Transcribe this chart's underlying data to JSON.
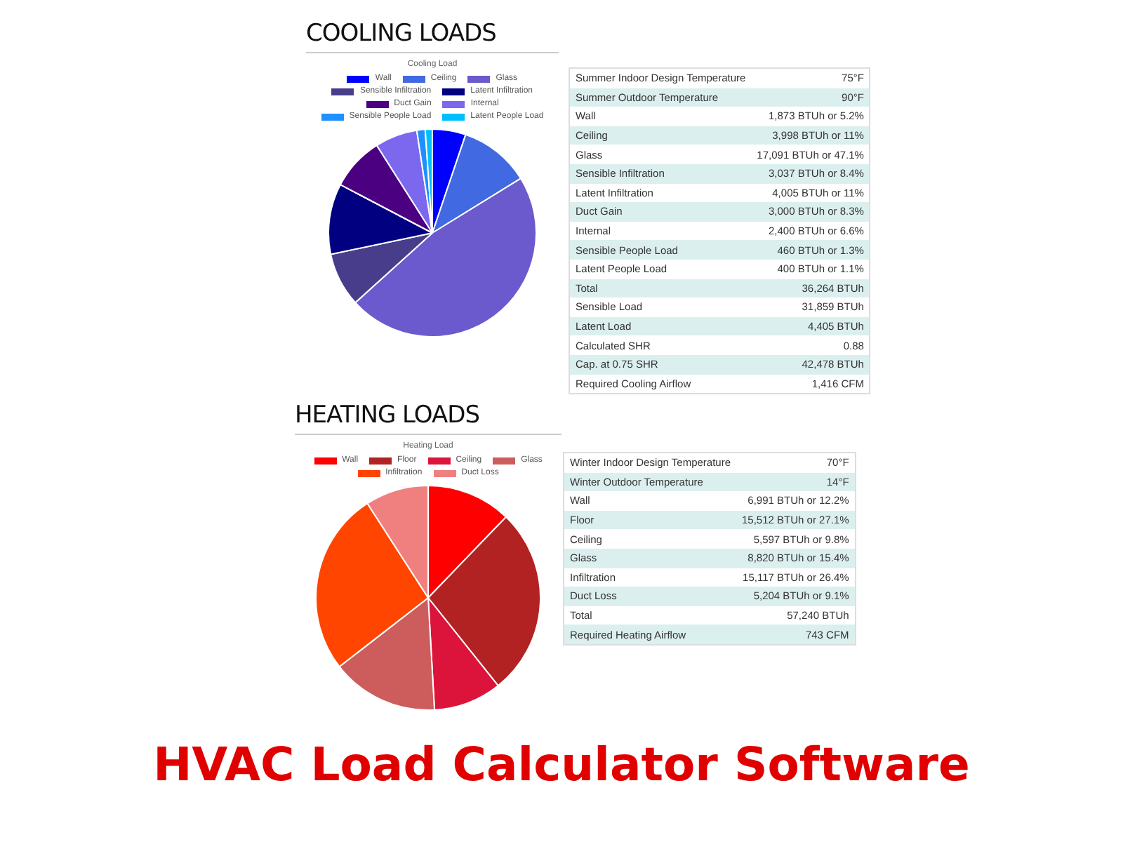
{
  "chart_data": [
    {
      "type": "pie",
      "title": "COOLING LOADS",
      "subtitle": "Cooling Load",
      "legend": "top",
      "categories": [
        "Wall",
        "Ceiling",
        "Glass",
        "Sensible Infiltration",
        "Latent Infiltration",
        "Duct Gain",
        "Internal",
        "Sensible People Load",
        "Latent People Load"
      ],
      "values": [
        5.2,
        11,
        47.1,
        8.4,
        11,
        8.3,
        6.6,
        1.3,
        1.1
      ],
      "colors": [
        "#0000ff",
        "#4169e1",
        "#6a5acd",
        "#483d8b",
        "#000080",
        "#4b0082",
        "#7b68ee",
        "#1e90ff",
        "#00bfff"
      ]
    },
    {
      "type": "other",
      "annotations": [
        "Summer Indoor Design Temperature",
        "75°F",
        "Summer Outdoor Temperature",
        "90°F",
        "Wall",
        "1,873 BTUh or 5.2%",
        "Ceiling",
        "3,998 BTUh or 11%",
        "Glass",
        "17,091 BTUh or 47.1%",
        "Sensible Infiltration",
        "3,037 BTUh or 8.4%",
        "Latent Infiltration",
        "4,005 BTUh or 11%",
        "Duct Gain",
        "3,000 BTUh or 8.3%",
        "Internal",
        "2,400 BTUh or 6.6%",
        "Sensible People Load",
        "460 BTUh or 1.3%",
        "Latent People Load",
        "400 BTUh or 1.1%",
        "Total",
        "36,264 BTUh",
        "Sensible Load",
        "31,859 BTUh",
        "Latent Load",
        "4,405 BTUh",
        "Calculated SHR",
        "0.88",
        "Cap. at 0.75 SHR",
        "42,478 BTUh",
        "Required Cooling Airflow",
        "1,416 CFM"
      ]
    },
    {
      "type": "pie",
      "title": "HEATING LOADS",
      "subtitle": "Heating Load",
      "legend": "top",
      "categories": [
        "Wall",
        "Floor",
        "Ceiling",
        "Glass",
        "Infiltration",
        "Duct Loss"
      ],
      "values": [
        12.2,
        27.1,
        9.8,
        15.4,
        26.4,
        9.1
      ],
      "colors": [
        "#ff0000",
        "#b22222",
        "#dc143c",
        "#cd5c5c",
        "#ff4500",
        "#f08080"
      ]
    },
    {
      "type": "other",
      "annotations": [
        "Winter Indoor Design Temperature",
        "70°F",
        "Winter Outdoor Temperature",
        "14°F",
        "Wall",
        "6,991 BTUh or 12.2%",
        "Floor",
        "15,512 BTUh or 27.1%",
        "Ceiling",
        "5,597 BTUh or 9.8%",
        "Glass",
        "8,820 BTUh or 15.4%",
        "Infiltration",
        "15,117 BTUh or 26.4%",
        "Duct Loss",
        "5,204 BTUh or 9.1%",
        "Total",
        "57,240 BTUh",
        "Required Heating Airflow",
        "743 CFM"
      ]
    },
    {
      "type": "other",
      "title": "HVAC Load Calculator Software"
    }
  ]
}
